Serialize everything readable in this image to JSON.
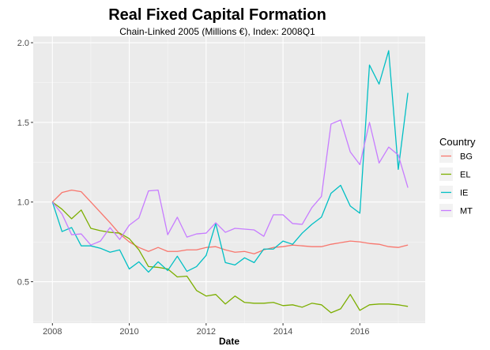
{
  "chart_data": {
    "type": "line",
    "title": "Real Fixed Capital Formation",
    "subtitle": "Chain-Linked 2005 (Millions €), Index: 2008Q1",
    "xlabel": "Date",
    "ylabel": "",
    "xlim": [
      2007.5,
      2017.7
    ],
    "ylim": [
      0.24,
      2.04
    ],
    "x_ticks": [
      2008,
      2010,
      2012,
      2014,
      2016
    ],
    "y_ticks": [
      0.5,
      1.0,
      1.5,
      2.0
    ],
    "y_tick_labels": [
      "0.5",
      "1.0",
      "1.5",
      "2.0"
    ],
    "grid": true,
    "legend": {
      "title": "Country",
      "position": "right"
    },
    "x": [
      2008.0,
      2008.25,
      2008.5,
      2008.75,
      2009.0,
      2009.25,
      2009.5,
      2009.75,
      2010.0,
      2010.25,
      2010.5,
      2010.75,
      2011.0,
      2011.25,
      2011.5,
      2011.75,
      2012.0,
      2012.25,
      2012.5,
      2012.75,
      2013.0,
      2013.25,
      2013.5,
      2013.75,
      2014.0,
      2014.25,
      2014.5,
      2014.75,
      2015.0,
      2015.25,
      2015.5,
      2015.75,
      2016.0,
      2016.25,
      2016.5,
      2016.75,
      2017.0,
      2017.25
    ],
    "series": [
      {
        "name": "BG",
        "color": "#F8766D",
        "values": [
          1.0,
          1.06,
          1.075,
          1.065,
          1.0,
          0.935,
          0.87,
          0.8,
          0.75,
          0.715,
          0.69,
          0.715,
          0.69,
          0.69,
          0.7,
          0.7,
          0.715,
          0.72,
          0.7,
          0.685,
          0.69,
          0.675,
          0.7,
          0.715,
          0.72,
          0.73,
          0.725,
          0.72,
          0.72,
          0.735,
          0.745,
          0.755,
          0.75,
          0.74,
          0.735,
          0.72,
          0.715,
          0.73
        ]
      },
      {
        "name": "EL",
        "color": "#7CAE00",
        "values": [
          1.0,
          0.955,
          0.895,
          0.95,
          0.835,
          0.82,
          0.81,
          0.805,
          0.77,
          0.7,
          0.595,
          0.59,
          0.58,
          0.53,
          0.535,
          0.445,
          0.41,
          0.42,
          0.36,
          0.41,
          0.37,
          0.365,
          0.365,
          0.37,
          0.35,
          0.355,
          0.34,
          0.365,
          0.355,
          0.305,
          0.33,
          0.42,
          0.32,
          0.355,
          0.36,
          0.36,
          0.355,
          0.345
        ]
      },
      {
        "name": "IE",
        "color": "#00BFC4",
        "values": [
          1.0,
          0.815,
          0.84,
          0.725,
          0.725,
          0.71,
          0.685,
          0.7,
          0.58,
          0.625,
          0.56,
          0.625,
          0.57,
          0.66,
          0.565,
          0.595,
          0.665,
          0.865,
          0.62,
          0.605,
          0.65,
          0.62,
          0.705,
          0.705,
          0.755,
          0.735,
          0.805,
          0.86,
          0.905,
          1.055,
          1.105,
          0.975,
          0.93,
          1.86,
          1.74,
          1.95,
          1.205,
          1.685
        ]
      },
      {
        "name": "MT",
        "color": "#C77CFF",
        "values": [
          1.0,
          0.925,
          0.795,
          0.8,
          0.73,
          0.755,
          0.84,
          0.765,
          0.855,
          0.9,
          1.07,
          1.075,
          0.795,
          0.905,
          0.78,
          0.8,
          0.805,
          0.87,
          0.81,
          0.835,
          0.83,
          0.825,
          0.785,
          0.92,
          0.92,
          0.865,
          0.86,
          0.965,
          1.035,
          1.49,
          1.515,
          1.315,
          1.235,
          1.5,
          1.245,
          1.345,
          1.295,
          1.09
        ]
      }
    ]
  }
}
